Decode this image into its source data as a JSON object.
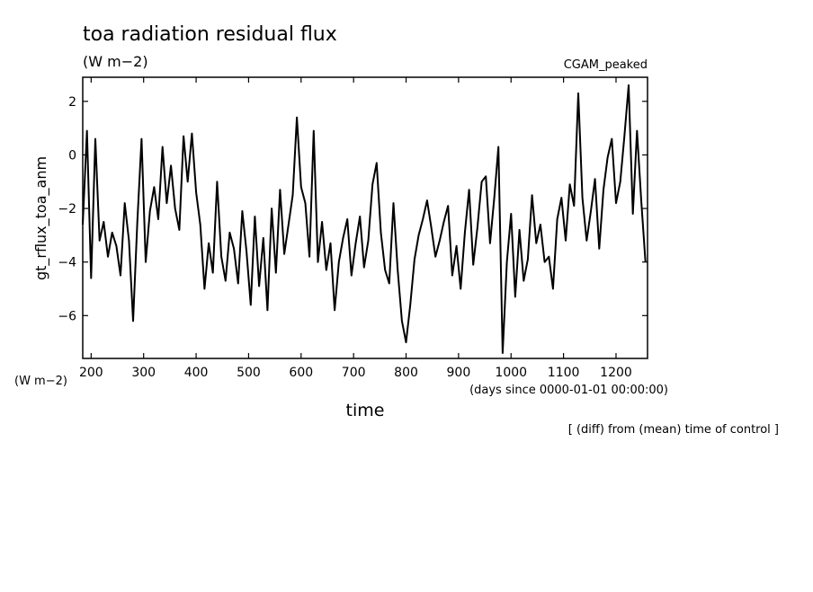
{
  "figure": {
    "title": "toa radiation residual flux",
    "units": "(W m−2)",
    "experiment": "CGAM_peaked",
    "y_units_note": "(W m−2)",
    "x_units_note": "(days since 0000-01-01 00:00:00)",
    "footnote": "[ (diff) from (mean) time of control ]"
  },
  "chart_data": {
    "type": "line",
    "title": "toa radiation residual flux",
    "xlabel": "time",
    "ylabel": "gt_rflux_toa_anm",
    "xlim": [
      184,
      1260
    ],
    "ylim": [
      -7.6,
      2.9
    ],
    "x_ticks": [
      200,
      300,
      400,
      500,
      600,
      700,
      800,
      900,
      1000,
      1100,
      1200
    ],
    "y_ticks": [
      -6,
      -4,
      -2,
      0,
      2
    ],
    "grid": false,
    "line_color": "#000000",
    "series": [
      {
        "x": [
          184,
          192,
          200,
          208,
          216,
          224,
          232,
          240,
          248,
          256,
          264,
          272,
          280,
          288,
          296,
          304,
          312,
          320,
          328,
          336,
          344,
          352,
          360,
          368,
          376,
          384,
          392,
          400,
          408,
          416,
          424,
          432,
          440,
          448,
          456,
          464,
          472,
          480,
          488,
          496,
          504,
          512,
          520,
          528,
          536,
          544,
          552,
          560,
          568,
          576,
          584,
          592,
          600,
          608,
          616,
          624,
          632,
          640,
          648,
          656,
          664,
          672,
          680,
          688,
          696,
          704,
          712,
          720,
          728,
          736,
          744,
          752,
          760,
          768,
          776,
          784,
          792,
          800,
          808,
          816,
          824,
          832,
          840,
          848,
          856,
          864,
          872,
          880,
          888,
          896,
          904,
          912,
          920,
          928,
          936,
          944,
          952,
          960,
          968,
          976,
          984,
          992,
          1000,
          1008,
          1016,
          1024,
          1032,
          1040,
          1048,
          1056,
          1064,
          1072,
          1080,
          1088,
          1096,
          1104,
          1112,
          1120,
          1128,
          1136,
          1144,
          1152,
          1160,
          1168,
          1176,
          1184,
          1192,
          1200,
          1208,
          1216,
          1224,
          1232,
          1240,
          1248,
          1256
        ],
        "values": [
          -2.6,
          0.9,
          -4.6,
          0.6,
          -3.2,
          -2.5,
          -3.8,
          -2.9,
          -3.4,
          -4.5,
          -1.8,
          -3.2,
          -6.2,
          -2.5,
          0.6,
          -4.0,
          -2.1,
          -1.2,
          -2.4,
          0.3,
          -1.8,
          -0.4,
          -2.0,
          -2.8,
          0.7,
          -1.0,
          0.8,
          -1.4,
          -2.6,
          -5.0,
          -3.3,
          -4.4,
          -1.0,
          -3.8,
          -4.7,
          -2.9,
          -3.5,
          -4.8,
          -2.1,
          -3.6,
          -5.6,
          -2.3,
          -4.9,
          -3.1,
          -5.8,
          -2.0,
          -4.4,
          -1.3,
          -3.7,
          -2.6,
          -1.5,
          1.4,
          -1.2,
          -1.8,
          -3.8,
          0.9,
          -4.0,
          -2.5,
          -4.3,
          -3.3,
          -5.8,
          -4.0,
          -3.1,
          -2.4,
          -4.5,
          -3.3,
          -2.3,
          -4.2,
          -3.2,
          -1.1,
          -0.3,
          -2.9,
          -4.3,
          -4.8,
          -1.8,
          -4.3,
          -6.2,
          -7.0,
          -5.6,
          -3.9,
          -3.0,
          -2.4,
          -1.7,
          -2.7,
          -3.8,
          -3.2,
          -2.5,
          -1.9,
          -4.5,
          -3.4,
          -5.0,
          -2.9,
          -1.3,
          -4.1,
          -2.7,
          -1.0,
          -0.8,
          -3.3,
          -1.6,
          0.3,
          -7.4,
          -4.0,
          -2.2,
          -5.3,
          -2.8,
          -4.7,
          -3.9,
          -1.5,
          -3.3,
          -2.6,
          -4.0,
          -3.8,
          -5.0,
          -2.4,
          -1.6,
          -3.2,
          -1.1,
          -1.9,
          2.3,
          -1.6,
          -3.2,
          -2.1,
          -0.9,
          -3.5,
          -1.3,
          -0.1,
          0.6,
          -1.8,
          -1.0,
          0.7,
          2.6,
          -2.2,
          0.9,
          -1.7,
          -4.0
        ]
      }
    ]
  }
}
